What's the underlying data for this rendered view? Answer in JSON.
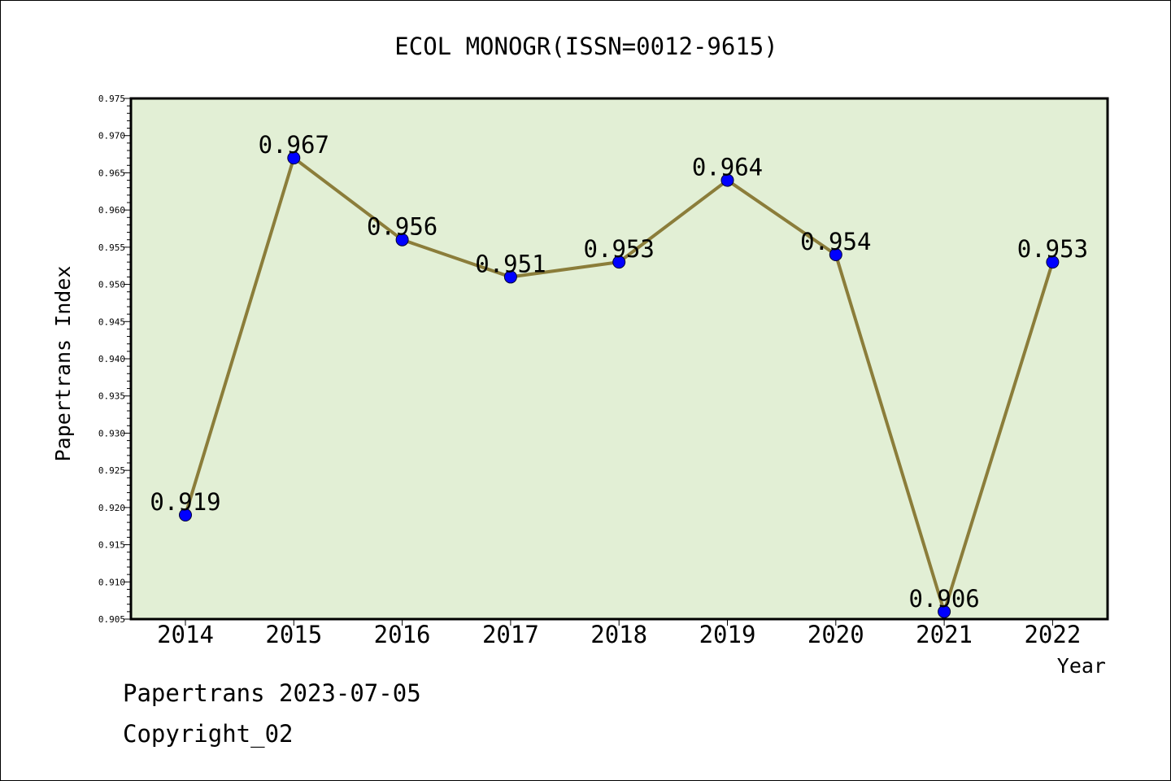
{
  "chart_data": {
    "type": "line",
    "title": "ECOL MONOGR(ISSN=0012-9615)",
    "xlabel": "Year",
    "ylabel": "Papertrans Index",
    "categories": [
      "2014",
      "2015",
      "2016",
      "2017",
      "2018",
      "2019",
      "2020",
      "2021",
      "2022"
    ],
    "values": [
      0.919,
      0.967,
      0.956,
      0.951,
      0.953,
      0.964,
      0.954,
      0.906,
      0.953
    ],
    "data_labels": [
      "0.919",
      "0.967",
      "0.956",
      "0.951",
      "0.953",
      "0.964",
      "0.954",
      "0.906",
      "0.953"
    ],
    "ylim": [
      0.905,
      0.975
    ],
    "yticks": [
      "0.905",
      "0.910",
      "0.915",
      "0.920",
      "0.925",
      "0.930",
      "0.935",
      "0.940",
      "0.945",
      "0.950",
      "0.955",
      "0.960",
      "0.965",
      "0.970",
      "0.975"
    ],
    "grid": false,
    "legend": "none",
    "colors": {
      "plot_background": "#e2efd5",
      "line": "#8b7d3a",
      "marker": "#0000ff"
    }
  },
  "footer": {
    "line1": "Papertrans 2023-07-05",
    "line2": "Copyright_02"
  }
}
